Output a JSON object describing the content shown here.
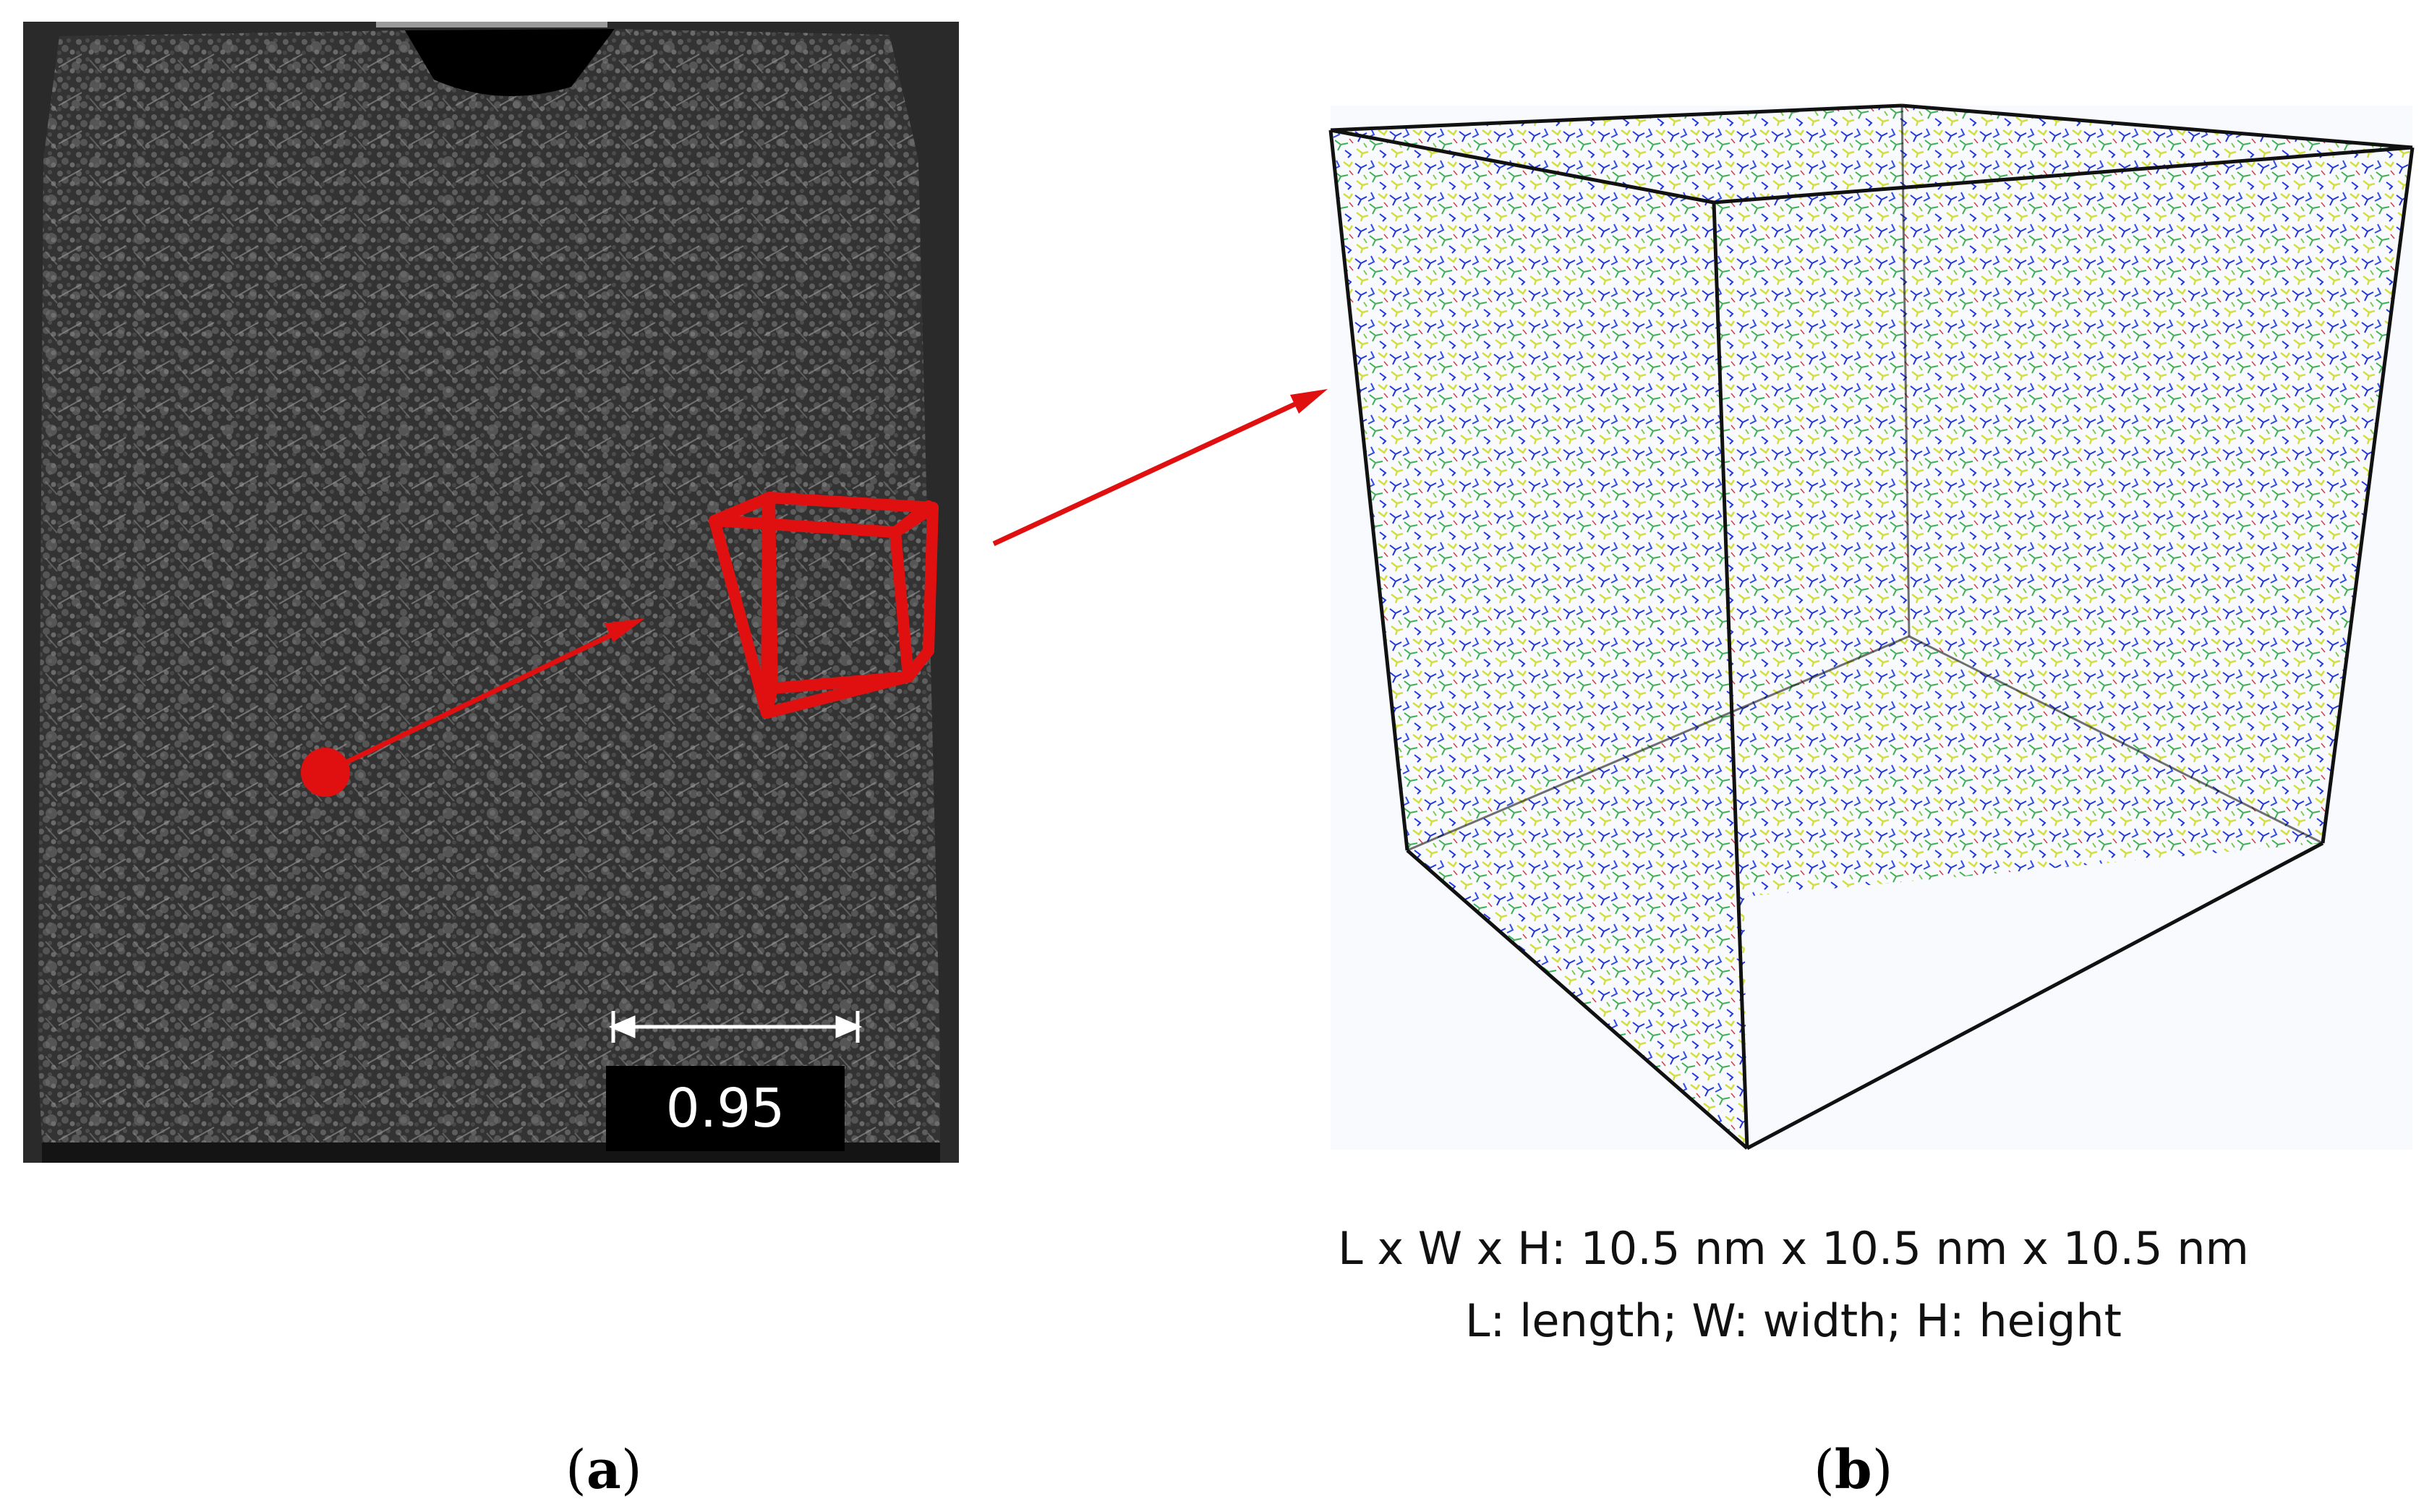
{
  "panel_a": {
    "scale_bar_label": "0.95 mm",
    "label_letter": "a"
  },
  "panel_b": {
    "dimensions_line": "L x W x H: 10.5 nm x 10.5 nm x 10.5 nm",
    "legend_line": "L: length; W: width; H: height",
    "label_letter": "b"
  },
  "colors": {
    "marker_red": "#e01010",
    "ct_background": "#2b2b2b",
    "atom_blue": "#1a2fd6",
    "atom_green": "#39b24a",
    "atom_yellow": "#d8e23a",
    "frame_border": "#2a2a2a"
  }
}
